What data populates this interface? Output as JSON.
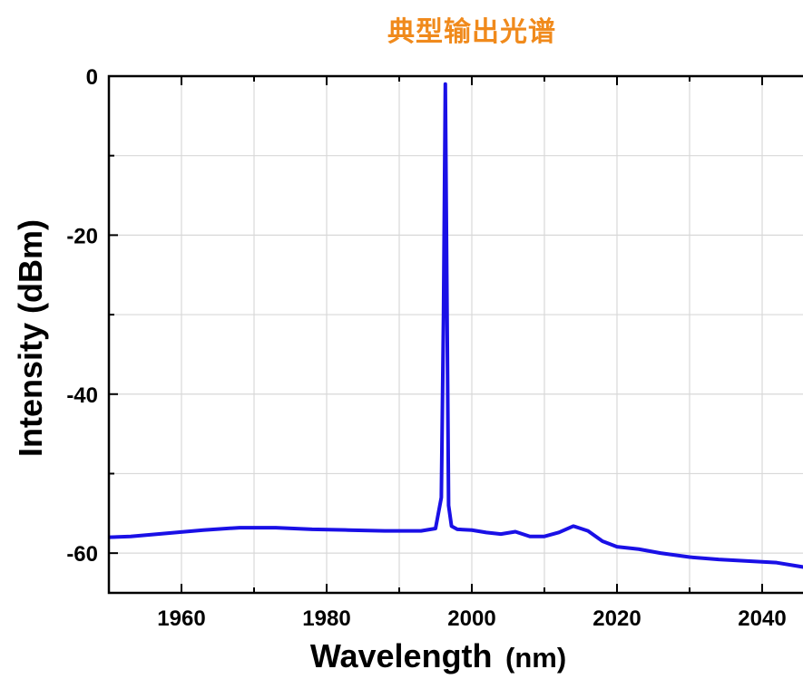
{
  "title": "典型输出光谱",
  "chart_data": {
    "type": "line",
    "title": "典型输出光谱",
    "xlabel_main": "Wavelength",
    "xlabel_unit": "(nm)",
    "ylabel": "Intensity (dBm)",
    "xlim": [
      1950,
      2050
    ],
    "ylim": [
      -65,
      0
    ],
    "x_ticks": [
      1960,
      1980,
      2000,
      2020,
      2040
    ],
    "y_ticks": [
      0,
      -20,
      -40,
      -60
    ],
    "grid": true,
    "series": [
      {
        "color": "#1a10e6",
        "x": [
          1950,
          1953,
          1958,
          1963,
          1968,
          1973,
          1978,
          1983,
          1988,
          1993,
          1995,
          1995.8,
          1996.1,
          1996.35,
          1996.55,
          1996.8,
          1997.2,
          1998,
          2000,
          2002,
          2004,
          2006,
          2008,
          2010,
          2012,
          2014,
          2016,
          2018,
          2020,
          2023,
          2026,
          2030,
          2034,
          2038,
          2042,
          2046,
          2050
        ],
        "y": [
          -58,
          -57.9,
          -57.5,
          -57.1,
          -56.8,
          -56.8,
          -57,
          -57.1,
          -57.2,
          -57.2,
          -56.9,
          -53,
          -30,
          -1,
          -25,
          -54,
          -56.6,
          -57,
          -57.1,
          -57.4,
          -57.6,
          -57.3,
          -57.9,
          -57.9,
          -57.4,
          -56.6,
          -57.2,
          -58.5,
          -59.2,
          -59.5,
          -60,
          -60.5,
          -60.8,
          -61,
          -61.2,
          -61.8,
          -62
        ]
      }
    ]
  }
}
